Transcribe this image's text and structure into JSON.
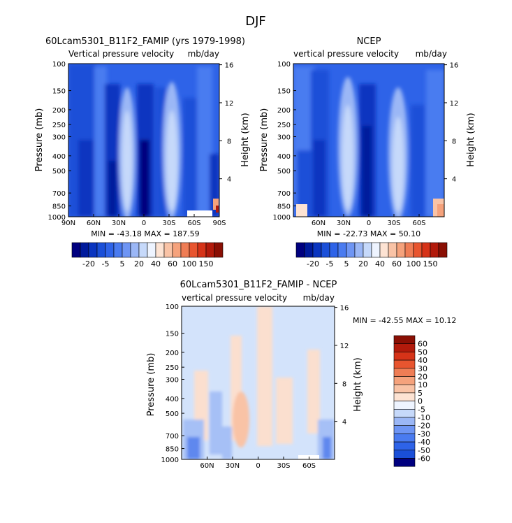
{
  "page_title": "DJF",
  "colors": {
    "neg": [
      "#00007f",
      "#001a9c",
      "#0a35c0",
      "#1a4fd8",
      "#2e63e8",
      "#4a7bf0",
      "#6e95f4",
      "#9bb7f6",
      "#c6d9fa"
    ],
    "zero": "#eef4ff",
    "pos": [
      "#fde3d3",
      "#f9c3a6",
      "#f5a27c",
      "#ef7d55",
      "#e8552f",
      "#d63318",
      "#b21a0b",
      "#8a0f04"
    ],
    "diff_bg": "#d3e3fb",
    "diff_pos": "#fbdfcf",
    "diff_neg": "#a6c0f6",
    "diff_neg2": "#5f88ee"
  },
  "panels": {
    "model": {
      "title": "60Lcam5301_B11F2_FAMIP (yrs 1979-1998)",
      "subtitle_left": "Vertical pressure velocity",
      "subtitle_right": "mb/day",
      "minmax": "MIN = -43.18   MAX = 187.59"
    },
    "ncep": {
      "title": "NCEP",
      "subtitle_left": "vertical pressure velocity",
      "subtitle_right": "mb/day",
      "minmax": "MIN = -22.73   MAX =   50.10"
    },
    "diff": {
      "title": "60Lcam5301_B11F2_FAMIP - NCEP",
      "subtitle_left": "vertical pressure velocity",
      "subtitle_right": "mb/day",
      "minmax": "MIN = -42.55   MAX =   10.12"
    }
  },
  "axes": {
    "ylabel_left": "Pressure (mb)",
    "ylabel_right": "Height (km)",
    "pressure_ticks": [
      "100",
      "150",
      "200",
      "250",
      "300",
      "400",
      "500",
      "700",
      "850",
      "1000"
    ],
    "height_ticks": [
      "16",
      "12",
      "8",
      "4"
    ],
    "lat_ticks_full": [
      "90N",
      "60N",
      "30N",
      "0",
      "30S",
      "60S",
      "90S"
    ],
    "lat_ticks_short": [
      "60N",
      "30N",
      "0",
      "30S",
      "60S"
    ]
  },
  "colorbars": {
    "horizontal_labels": [
      "-20",
      "-5",
      "5",
      "20",
      "40",
      "60",
      "100",
      "150"
    ],
    "vertical_labels": [
      "60",
      "50",
      "40",
      "30",
      "20",
      "10",
      "5",
      "0",
      "-5",
      "-10",
      "-20",
      "-30",
      "-40",
      "-50",
      "-60"
    ]
  },
  "chart_data": [
    {
      "type": "heatmap",
      "title": "60Lcam5301_B11F2_FAMIP (yrs 1979-1998)",
      "subtitle": "Vertical pressure velocity  mb/day",
      "xlabel": "",
      "ylabel": "Pressure (mb)",
      "y2label": "Height (km)",
      "x_range": [
        "90N",
        "90S"
      ],
      "y_range": [
        1000,
        100
      ],
      "y_scale": "log",
      "min": -43.18,
      "max": 187.59,
      "levels": [
        -20,
        -5,
        5,
        20,
        40,
        60,
        100,
        150
      ]
    },
    {
      "type": "heatmap",
      "title": "NCEP",
      "subtitle": "vertical pressure velocity  mb/day",
      "ylabel": "Pressure (mb)",
      "y2label": "Height (km)",
      "y_range": [
        1000,
        100
      ],
      "y_scale": "log",
      "min": -22.73,
      "max": 50.1,
      "levels": [
        -20,
        -5,
        5,
        20,
        40,
        60,
        100,
        150
      ]
    },
    {
      "type": "heatmap",
      "title": "60Lcam5301_B11F2_FAMIP - NCEP",
      "subtitle": "vertical pressure velocity  mb/day",
      "ylabel": "Pressure (mb)",
      "y2label": "Height (km)",
      "y_range": [
        1000,
        100
      ],
      "y_scale": "log",
      "min": -42.55,
      "max": 10.12,
      "levels": [
        -60,
        -50,
        -40,
        -30,
        -20,
        -10,
        -5,
        0,
        5,
        10,
        20,
        30,
        40,
        50,
        60
      ]
    }
  ]
}
